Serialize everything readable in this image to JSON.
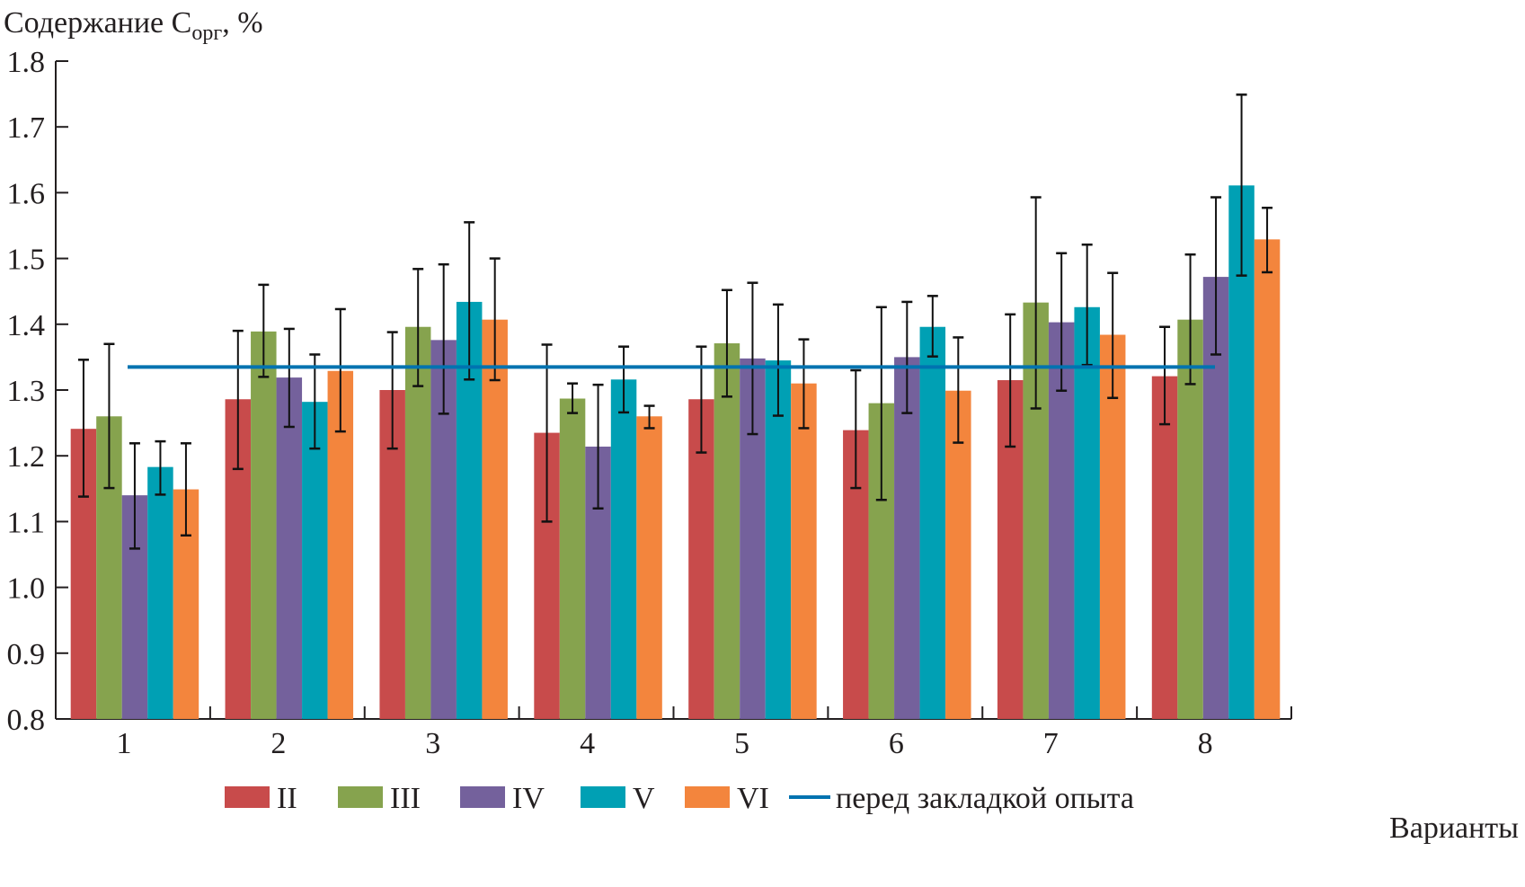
{
  "chart_data": {
    "type": "bar",
    "title": "",
    "ylabel": "Содержание C",
    "ylabel_sub": "орг",
    "ylabel_suffix": ", %",
    "xlabel": "Варианты",
    "ylim": [
      0.8,
      1.8
    ],
    "yticks": [
      "0.8",
      "0.9",
      "1.0",
      "1.1",
      "1.2",
      "1.3",
      "1.4",
      "1.5",
      "1.6",
      "1.7",
      "1.8"
    ],
    "ytick_values": [
      0.8,
      0.9,
      1.0,
      1.1,
      1.2,
      1.3,
      1.4,
      1.5,
      1.6,
      1.7,
      1.8
    ],
    "categories": [
      "1",
      "2",
      "3",
      "4",
      "5",
      "6",
      "7",
      "8"
    ],
    "grid": false,
    "legend_position": "bottom",
    "series": [
      {
        "name": "II",
        "color": "#c84b4b",
        "values": [
          1.241,
          1.286,
          1.3,
          1.235,
          1.286,
          1.239,
          1.315,
          1.321
        ],
        "err_high": [
          1.346,
          1.39,
          1.388,
          1.369,
          1.366,
          1.33,
          1.415,
          1.396
        ],
        "err_low": [
          1.138,
          1.18,
          1.211,
          1.1,
          1.205,
          1.151,
          1.214,
          1.248
        ]
      },
      {
        "name": "III",
        "color": "#86a34e",
        "values": [
          1.26,
          1.389,
          1.396,
          1.287,
          1.371,
          1.28,
          1.433,
          1.407
        ],
        "err_high": [
          1.37,
          1.46,
          1.484,
          1.31,
          1.452,
          1.426,
          1.593,
          1.506
        ],
        "err_low": [
          1.151,
          1.32,
          1.306,
          1.265,
          1.29,
          1.133,
          1.272,
          1.309
        ]
      },
      {
        "name": "IV",
        "color": "#74619c",
        "values": [
          1.14,
          1.319,
          1.376,
          1.214,
          1.348,
          1.35,
          1.403,
          1.472
        ],
        "err_high": [
          1.219,
          1.393,
          1.491,
          1.308,
          1.463,
          1.434,
          1.508,
          1.593
        ],
        "err_low": [
          1.059,
          1.244,
          1.264,
          1.12,
          1.233,
          1.265,
          1.299,
          1.354
        ]
      },
      {
        "name": "V",
        "color": "#00a0b4",
        "values": [
          1.183,
          1.282,
          1.434,
          1.316,
          1.345,
          1.396,
          1.426,
          1.611
        ],
        "err_high": [
          1.222,
          1.354,
          1.555,
          1.366,
          1.43,
          1.443,
          1.521,
          1.749
        ],
        "err_low": [
          1.141,
          1.211,
          1.316,
          1.266,
          1.261,
          1.351,
          1.338,
          1.474
        ]
      },
      {
        "name": "VI",
        "color": "#f3853d",
        "values": [
          1.149,
          1.329,
          1.407,
          1.26,
          1.31,
          1.299,
          1.384,
          1.529
        ],
        "err_high": [
          1.219,
          1.423,
          1.5,
          1.276,
          1.377,
          1.38,
          1.478,
          1.577
        ],
        "err_low": [
          1.079,
          1.237,
          1.315,
          1.242,
          1.242,
          1.22,
          1.288,
          1.479
        ]
      }
    ],
    "reference_line": {
      "name": "перед закладкой опыта",
      "value": 1.335,
      "color": "#0073b0"
    }
  }
}
